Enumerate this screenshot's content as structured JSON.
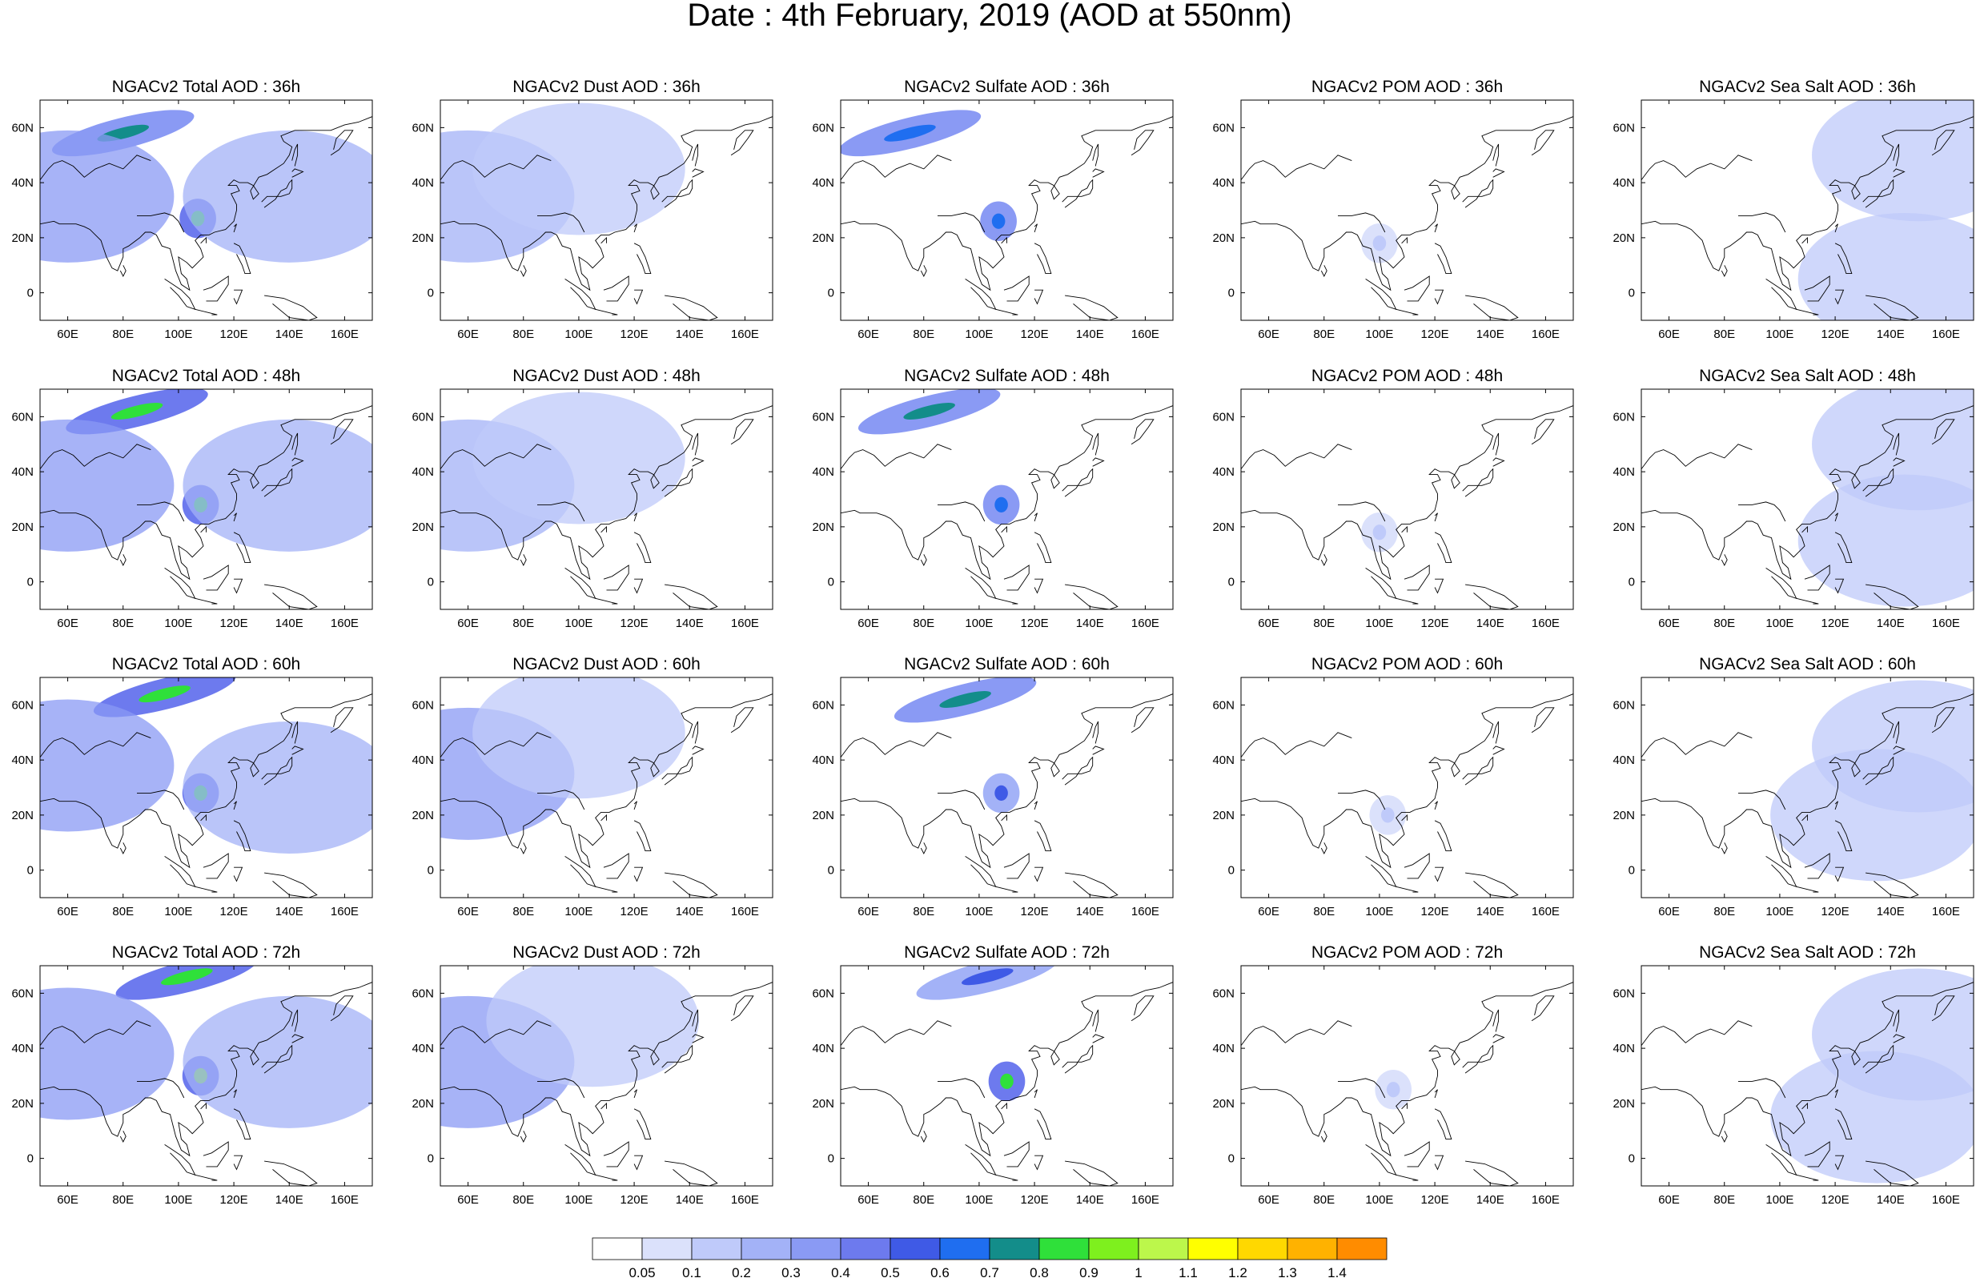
{
  "figure": {
    "title": "Date : 4th February, 2019 (AOD at 550nm)"
  },
  "panels": [
    {
      "title": "NGACv2 Total AOD : 36h",
      "species": "total",
      "hour": "36h"
    },
    {
      "title": "NGACv2 Dust AOD : 36h",
      "species": "dust",
      "hour": "36h"
    },
    {
      "title": "NGACv2 Sulfate AOD : 36h",
      "species": "sulfate",
      "hour": "36h"
    },
    {
      "title": "NGACv2 POM AOD : 36h",
      "species": "pom",
      "hour": "36h"
    },
    {
      "title": "NGACv2 Sea Salt AOD : 36h",
      "species": "seasalt",
      "hour": "36h"
    },
    {
      "title": "NGACv2 Total AOD : 48h",
      "species": "total",
      "hour": "48h"
    },
    {
      "title": "NGACv2 Dust AOD : 48h",
      "species": "dust",
      "hour": "48h"
    },
    {
      "title": "NGACv2 Sulfate AOD : 48h",
      "species": "sulfate",
      "hour": "48h"
    },
    {
      "title": "NGACv2 POM AOD : 48h",
      "species": "pom",
      "hour": "48h"
    },
    {
      "title": "NGACv2 Sea Salt AOD : 48h",
      "species": "seasalt",
      "hour": "48h"
    },
    {
      "title": "NGACv2 Total AOD : 60h",
      "species": "total",
      "hour": "60h"
    },
    {
      "title": "NGACv2 Dust AOD : 60h",
      "species": "dust",
      "hour": "60h"
    },
    {
      "title": "NGACv2 Sulfate AOD : 60h",
      "species": "sulfate",
      "hour": "60h"
    },
    {
      "title": "NGACv2 POM AOD : 60h",
      "species": "pom",
      "hour": "60h"
    },
    {
      "title": "NGACv2 Sea Salt AOD : 60h",
      "species": "seasalt",
      "hour": "60h"
    },
    {
      "title": "NGACv2 Total AOD : 72h",
      "species": "total",
      "hour": "72h"
    },
    {
      "title": "NGACv2 Dust AOD : 72h",
      "species": "dust",
      "hour": "72h"
    },
    {
      "title": "NGACv2 Sulfate AOD : 72h",
      "species": "sulfate",
      "hour": "72h"
    },
    {
      "title": "NGACv2 POM AOD : 72h",
      "species": "pom",
      "hour": "72h"
    },
    {
      "title": "NGACv2 Sea Salt  AOD : 72h",
      "species": "seasalt",
      "hour": "72h"
    }
  ],
  "axes": {
    "lon_range": [
      50,
      170
    ],
    "lat_range": [
      -10,
      70
    ],
    "x_ticks": [
      60,
      80,
      100,
      120,
      140,
      160
    ],
    "x_tick_labels": [
      "60E",
      "80E",
      "100E",
      "120E",
      "140E",
      "160E"
    ],
    "y_ticks": [
      0,
      20,
      40,
      60
    ],
    "y_tick_labels": [
      "0",
      "20N",
      "40N",
      "60N"
    ]
  },
  "colorbar": {
    "colors": [
      "#ffffff",
      "#dbe1fb",
      "#bfcafa",
      "#a3b2f7",
      "#8a9af4",
      "#6d7aee",
      "#3f5ae6",
      "#1f6ef0",
      "#138d8a",
      "#2fe03a",
      "#7ef01e",
      "#bcf74b",
      "#ffff00",
      "#ffd800",
      "#ffb200",
      "#ff8c00",
      "#ff5a00",
      "#ff2000"
    ],
    "labels": [
      "0.05",
      "0.1",
      "0.2",
      "0.3",
      "0.4",
      "0.5",
      "0.6",
      "0.7",
      "0.8",
      "0.9",
      "1",
      "1.1",
      "1.2",
      "1.3",
      "1.4"
    ]
  },
  "map_data": {
    "total": {
      "36h": [
        {
          "lon": 80,
          "lat": 58,
          "v": 0.75,
          "type": "band"
        },
        {
          "lon": 107,
          "lat": 27,
          "v": 0.8,
          "type": "blob"
        },
        {
          "lon": 60,
          "lat": 35,
          "v": 0.3,
          "type": "area"
        },
        {
          "lon": 140,
          "lat": 35,
          "v": 0.2,
          "type": "area"
        }
      ],
      "48h": [
        {
          "lon": 85,
          "lat": 62,
          "v": 0.8,
          "type": "band"
        },
        {
          "lon": 108,
          "lat": 28,
          "v": 0.8,
          "type": "blob"
        },
        {
          "lon": 60,
          "lat": 35,
          "v": 0.3,
          "type": "area"
        },
        {
          "lon": 140,
          "lat": 35,
          "v": 0.2,
          "type": "area"
        }
      ],
      "60h": [
        {
          "lon": 95,
          "lat": 64,
          "v": 0.8,
          "type": "band"
        },
        {
          "lon": 108,
          "lat": 28,
          "v": 0.8,
          "type": "blob"
        },
        {
          "lon": 60,
          "lat": 38,
          "v": 0.3,
          "type": "area"
        },
        {
          "lon": 140,
          "lat": 30,
          "v": 0.2,
          "type": "area"
        }
      ],
      "72h": [
        {
          "lon": 103,
          "lat": 66,
          "v": 0.8,
          "type": "band"
        },
        {
          "lon": 108,
          "lat": 30,
          "v": 0.9,
          "type": "blob"
        },
        {
          "lon": 60,
          "lat": 38,
          "v": 0.3,
          "type": "area"
        },
        {
          "lon": 140,
          "lat": 35,
          "v": 0.2,
          "type": "area"
        }
      ]
    },
    "dust": {
      "36h": [
        {
          "lon": 60,
          "lat": 35,
          "v": 0.25,
          "type": "area"
        },
        {
          "lon": 100,
          "lat": 45,
          "v": 0.15,
          "type": "area"
        }
      ],
      "48h": [
        {
          "lon": 60,
          "lat": 35,
          "v": 0.25,
          "type": "area"
        },
        {
          "lon": 100,
          "lat": 45,
          "v": 0.15,
          "type": "area"
        }
      ],
      "60h": [
        {
          "lon": 60,
          "lat": 35,
          "v": 0.3,
          "type": "area"
        },
        {
          "lon": 100,
          "lat": 50,
          "v": 0.15,
          "type": "area"
        }
      ],
      "72h": [
        {
          "lon": 60,
          "lat": 35,
          "v": 0.3,
          "type": "area"
        },
        {
          "lon": 105,
          "lat": 50,
          "v": 0.15,
          "type": "area"
        }
      ]
    },
    "sulfate": {
      "36h": [
        {
          "lon": 75,
          "lat": 58,
          "v": 0.6,
          "type": "band"
        },
        {
          "lon": 107,
          "lat": 26,
          "v": 0.6,
          "type": "blob"
        }
      ],
      "48h": [
        {
          "lon": 82,
          "lat": 62,
          "v": 0.7,
          "type": "band"
        },
        {
          "lon": 108,
          "lat": 28,
          "v": 0.6,
          "type": "blob"
        }
      ],
      "60h": [
        {
          "lon": 95,
          "lat": 62,
          "v": 0.7,
          "type": "band"
        },
        {
          "lon": 108,
          "lat": 28,
          "v": 0.5,
          "type": "blob"
        }
      ],
      "72h": [
        {
          "lon": 103,
          "lat": 66,
          "v": 0.5,
          "type": "band"
        },
        {
          "lon": 110,
          "lat": 28,
          "v": 0.8,
          "type": "blob"
        }
      ]
    },
    "pom": {
      "36h": [
        {
          "lon": 100,
          "lat": 18,
          "v": 0.1,
          "type": "blob"
        }
      ],
      "48h": [
        {
          "lon": 100,
          "lat": 18,
          "v": 0.1,
          "type": "blob"
        }
      ],
      "60h": [
        {
          "lon": 103,
          "lat": 20,
          "v": 0.1,
          "type": "blob"
        }
      ],
      "72h": [
        {
          "lon": 105,
          "lat": 25,
          "v": 0.1,
          "type": "blob"
        }
      ]
    },
    "seasalt": {
      "36h": [
        {
          "lon": 150,
          "lat": 50,
          "v": 0.15,
          "type": "area"
        },
        {
          "lon": 145,
          "lat": 5,
          "v": 0.1,
          "type": "area"
        }
      ],
      "48h": [
        {
          "lon": 150,
          "lat": 50,
          "v": 0.15,
          "type": "area"
        },
        {
          "lon": 145,
          "lat": 15,
          "v": 0.1,
          "type": "area"
        }
      ],
      "60h": [
        {
          "lon": 150,
          "lat": 45,
          "v": 0.15,
          "type": "area"
        },
        {
          "lon": 135,
          "lat": 20,
          "v": 0.15,
          "type": "area"
        }
      ],
      "72h": [
        {
          "lon": 150,
          "lat": 45,
          "v": 0.15,
          "type": "area"
        },
        {
          "lon": 135,
          "lat": 15,
          "v": 0.12,
          "type": "area"
        }
      ]
    }
  }
}
